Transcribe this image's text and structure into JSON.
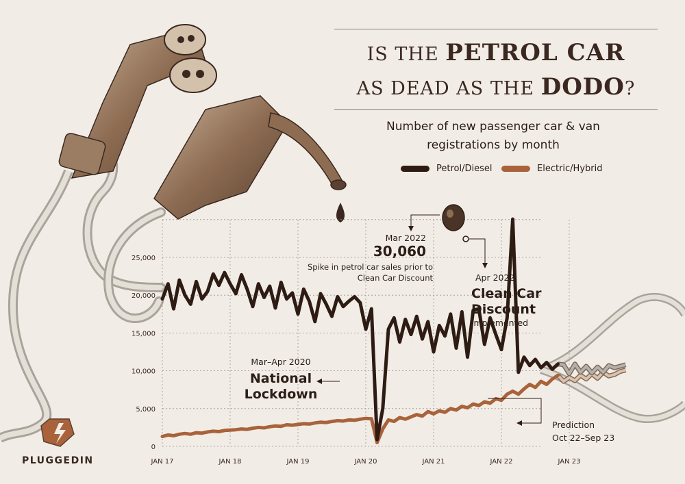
{
  "header": {
    "title_line1_pre": "IS THE ",
    "title_line1_bold": "PETROL CAR",
    "title_line2_pre": "AS DEAD AS THE ",
    "title_line2_bold": "DODO",
    "title_line2_post": "?",
    "subtitle": "Number of new passenger car & van registrations by month"
  },
  "legend": [
    {
      "label": "Petrol/Diesel",
      "color": "#2e1c14"
    },
    {
      "label": "Electric/Hybrid",
      "color": "#a9623a"
    }
  ],
  "annotations": {
    "lockdown_small": "Mar–Apr 2020",
    "lockdown_large": "National Lockdown",
    "spike_date": "Mar 2022",
    "spike_value": "30,060",
    "spike_note": "Spike in petrol car sales prior to Clean Car Discount",
    "ccd_date": "Apr 2022",
    "ccd_large": "Clean Car Discount",
    "ccd_small": "implemented",
    "prediction_label": "Prediction",
    "prediction_range": "Oct 22–Sep 23"
  },
  "brand": {
    "name": "PLUGGEDIN"
  },
  "chart_data": {
    "type": "line",
    "title": "Number of new passenger car & van registrations by month",
    "x_tick_labels": [
      "JAN 17",
      "JAN 18",
      "JAN 19",
      "JAN 20",
      "JAN 21",
      "JAN 22",
      "JAN 23"
    ],
    "y_tick_labels": [
      "0",
      "5,000",
      "10,000",
      "15,000",
      "20,000",
      "25,000"
    ],
    "ylim": [
      0,
      30000
    ],
    "x_start": "2017-01",
    "grid": true,
    "series": [
      {
        "name": "Petrol/Diesel",
        "color": "#2e1c14",
        "values": [
          19500,
          21500,
          18200,
          22000,
          20000,
          18800,
          21800,
          19500,
          20500,
          22800,
          21300,
          23000,
          21500,
          20200,
          22700,
          20800,
          18500,
          21500,
          19700,
          21200,
          18300,
          21700,
          19500,
          20300,
          17500,
          20800,
          19200,
          16500,
          20200,
          18800,
          17200,
          19800,
          18500,
          19200,
          19800,
          19000,
          15500,
          18200,
          900,
          5000,
          15500,
          17000,
          13800,
          16800,
          14800,
          17200,
          14200,
          16500,
          12500,
          16000,
          14600,
          17500,
          13000,
          17800,
          11800,
          18000,
          18200,
          13500,
          17000,
          14800,
          12800,
          17000,
          30060,
          9800,
          11800,
          10700,
          11500,
          10400,
          11100,
          10200,
          10900
        ],
        "prediction_values": [
          10800,
          9600,
          10900,
          9800,
          10600,
          9700,
          10500,
          9800,
          10700,
          10400,
          10600,
          10800
        ]
      },
      {
        "name": "Electric/Hybrid",
        "color": "#a9623a",
        "values": [
          1300,
          1500,
          1400,
          1600,
          1700,
          1600,
          1800,
          1750,
          1900,
          2000,
          1950,
          2100,
          2150,
          2200,
          2300,
          2250,
          2400,
          2500,
          2450,
          2600,
          2700,
          2650,
          2850,
          2800,
          2900,
          3000,
          2950,
          3100,
          3200,
          3150,
          3300,
          3400,
          3350,
          3500,
          3450,
          3600,
          3700,
          3650,
          500,
          2300,
          3500,
          3300,
          3800,
          3600,
          3900,
          4200,
          4000,
          4600,
          4300,
          4700,
          4500,
          5000,
          4800,
          5300,
          5100,
          5600,
          5400,
          5900,
          5700,
          6300,
          6100,
          6900,
          7300,
          6900,
          7600,
          8200,
          7800,
          8600,
          8200,
          8900,
          9400
        ],
        "prediction_values": [
          8600,
          9100,
          8700,
          9400,
          8900,
          9600,
          9000,
          9800,
          9300,
          9500,
          9900,
          10100
        ]
      }
    ]
  }
}
